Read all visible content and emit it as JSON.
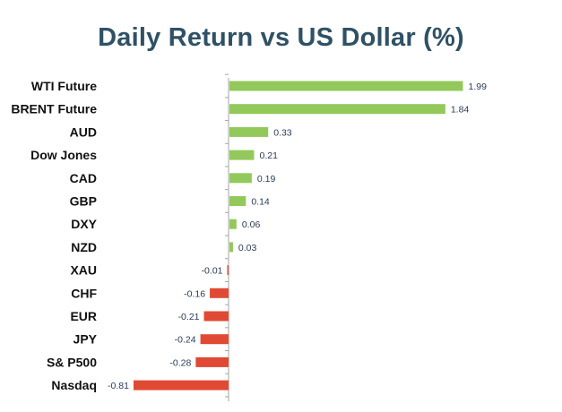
{
  "chart_data": {
    "type": "bar",
    "orientation": "horizontal",
    "title": "Daily Return vs US Dollar (%)",
    "xlabel": "",
    "ylabel": "",
    "categories": [
      "WTI Future",
      "BRENT Future",
      "AUD",
      "Dow Jones",
      "CAD",
      "GBP",
      "DXY",
      "NZD",
      "XAU",
      "CHF",
      "EUR",
      "JPY",
      "S& P500",
      "Nasdaq"
    ],
    "values": [
      1.99,
      1.84,
      0.33,
      0.21,
      0.19,
      0.14,
      0.06,
      0.03,
      -0.01,
      -0.16,
      -0.21,
      -0.24,
      -0.28,
      -0.81
    ],
    "value_labels": [
      "1.99",
      "1.84",
      "0.33",
      "0.21",
      "0.19",
      "0.14",
      "0.06",
      "0.03",
      "-0.01",
      "-0.16",
      "-0.21",
      "-0.24",
      "-0.28",
      "-0.81"
    ],
    "xlim": [
      -0.81,
      1.99
    ],
    "grid": false,
    "legend": "none",
    "colors": {
      "positive": "#92c95a",
      "negative": "#e04a35",
      "axis": "#a6a6a6"
    }
  }
}
